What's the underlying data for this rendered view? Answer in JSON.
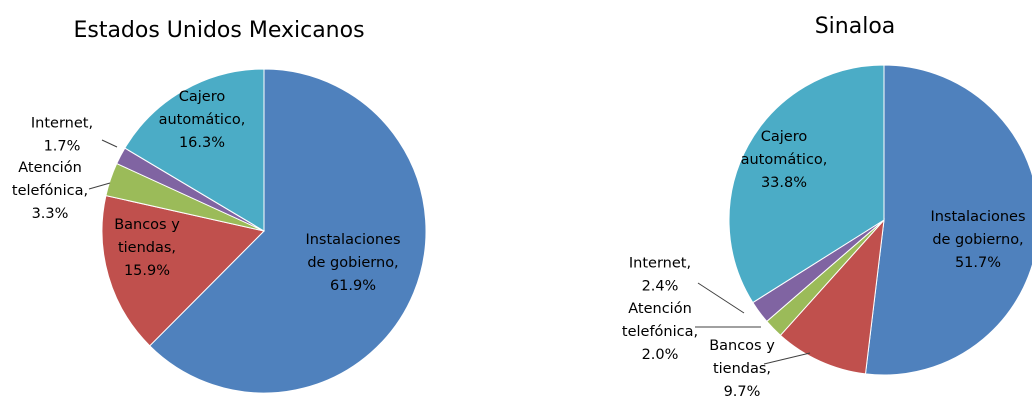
{
  "chart_data": [
    {
      "type": "pie",
      "title": "Estados Unidos Mexicanos",
      "slices": [
        {
          "label_lines": [
            "Instalaciones",
            "de gobierno,",
            "61.9%"
          ],
          "value": 61.9,
          "color": "#4F81BD"
        },
        {
          "label_lines": [
            "Bancos y",
            "tiendas,",
            "15.9%"
          ],
          "value": 15.9,
          "color": "#C0504D"
        },
        {
          "label_lines": [
            "Atención",
            "telefónica,",
            "3.3%"
          ],
          "value": 3.3,
          "color": "#9BBB59"
        },
        {
          "label_lines": [
            "Internet,",
            "1.7%"
          ],
          "value": 1.7,
          "color": "#8064A2"
        },
        {
          "label_lines": [
            "Cajero",
            "automático,",
            "16.3%"
          ],
          "value": 16.3,
          "color": "#4BACC6"
        }
      ]
    },
    {
      "type": "pie",
      "title": "Sinaloa",
      "slices": [
        {
          "label_lines": [
            "Instalaciones",
            "de gobierno,",
            "51.7%"
          ],
          "value": 51.7,
          "color": "#4F81BD"
        },
        {
          "label_lines": [
            "Bancos y",
            "tiendas,",
            "9.7%"
          ],
          "value": 9.7,
          "color": "#C0504D"
        },
        {
          "label_lines": [
            "Atención",
            "telefónica,",
            "2.0%"
          ],
          "value": 2.0,
          "color": "#9BBB59"
        },
        {
          "label_lines": [
            "Internet,",
            "2.4%"
          ],
          "value": 2.4,
          "color": "#8064A2"
        },
        {
          "label_lines": [
            "Cajero",
            "automático,",
            "33.8%"
          ],
          "value": 33.8,
          "color": "#4BACC6"
        }
      ]
    }
  ]
}
